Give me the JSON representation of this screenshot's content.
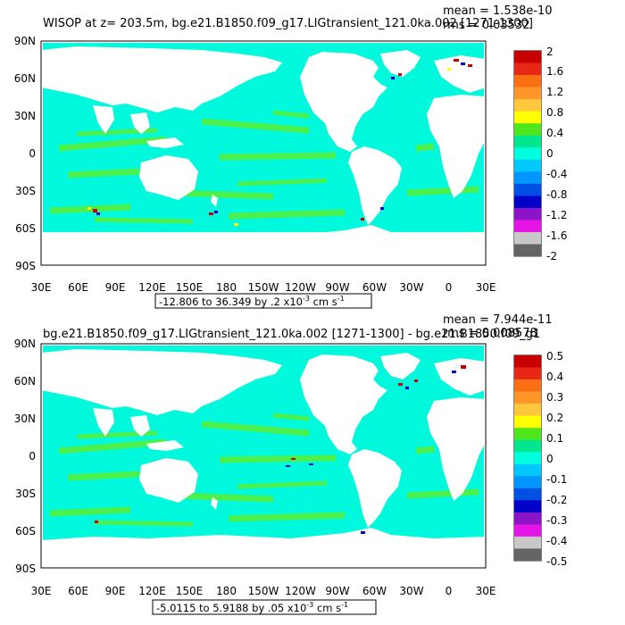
{
  "panels": [
    {
      "title": "WISOP at z= 203.5m, bg.e21.B1850.f09_g17.LIGtransient_121.0ka.002 [1271-1300]",
      "mean": "mean = 1.538e-10",
      "rms": "rms = 0.03532",
      "range_text": "-12.806 to 36.349 by .2 x10",
      "range_units": "cm s",
      "colorbar_labels": [
        "2",
        "1.6",
        "1.2",
        "0.8",
        "0.4",
        "0",
        "-0.4",
        "-0.8",
        "-1.2",
        "-1.6",
        "-2"
      ]
    },
    {
      "title": "bg.e21.B1850.f09_g17.LIGtransient_121.0ka.002 [1271-1300] - bg.e21.B1850.f09_g1",
      "mean": "mean = 7.944e-11",
      "rms": "rms = 0.008578",
      "range_text": "-5.0115 to 5.9188 by .05 x10",
      "range_units": "cm s",
      "colorbar_labels": [
        "0.5",
        "0.4",
        "0.3",
        "0.2",
        "0.1",
        "0",
        "-0.1",
        "-0.2",
        "-0.3",
        "-0.4",
        "-0.5"
      ]
    }
  ],
  "lat_labels": [
    "90N",
    "60N",
    "30N",
    "0",
    "30S",
    "60S",
    "90S"
  ],
  "lon_labels": [
    "30E",
    "60E",
    "90E",
    "120E",
    "150E",
    "180",
    "150W",
    "120W",
    "90W",
    "60W",
    "30W",
    "0",
    "30E"
  ],
  "exponent": "-3",
  "exponent_units": "-1",
  "colorbar_colors": [
    "#c80000",
    "#e62814",
    "#fa6e14",
    "#ff9628",
    "#ffc83c",
    "#ffff00",
    "#50e61e",
    "#00e68c",
    "#00ffdc",
    "#00c8ff",
    "#0096ff",
    "#0050e6",
    "#0000c8",
    "#8c14c8",
    "#e614e6",
    "#c8c8c8",
    "#646464"
  ]
}
